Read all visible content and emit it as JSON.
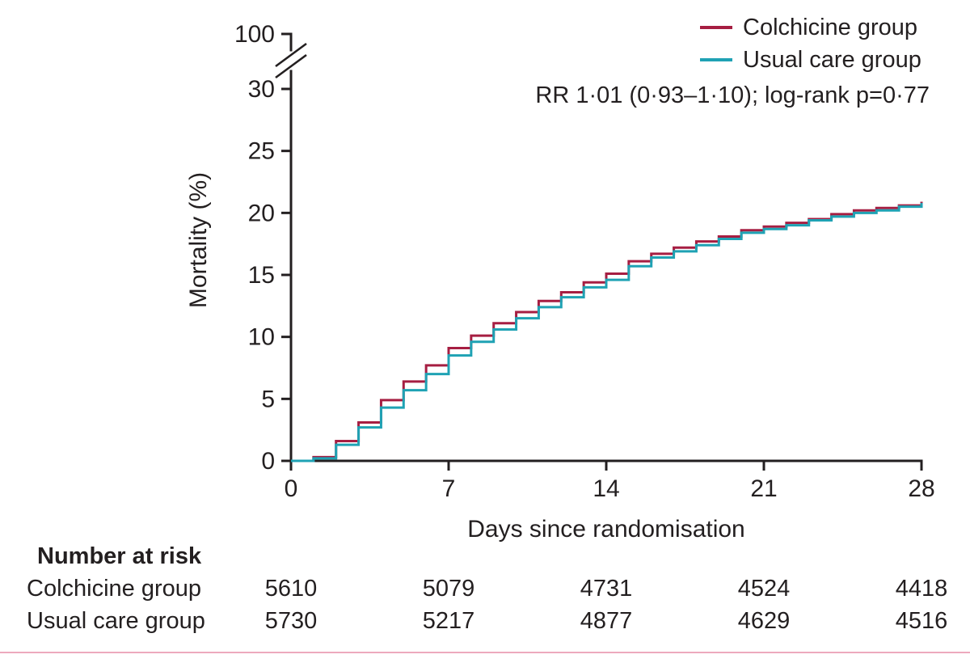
{
  "figure": {
    "background": "#ffffff",
    "text_color": "#231f20",
    "bottom_rule_color": "#eda9bd"
  },
  "chart_data": {
    "type": "line",
    "step": true,
    "title": "",
    "xlabel": "Days since randomisation",
    "ylabel": "Mortality (%)",
    "xlim": [
      0,
      28
    ],
    "ylim": [
      0,
      30
    ],
    "x_ticks": [
      0,
      7,
      14,
      21,
      28
    ],
    "y_ticks": [
      0,
      5,
      10,
      15,
      20,
      25,
      30
    ],
    "y_axis_break": {
      "upper_label": "100"
    },
    "grid": false,
    "legend_position": "top-right",
    "annotation": "RR 1·01 (0·93–1·10); log-rank p=0·77",
    "x": [
      0,
      1,
      2,
      3,
      4,
      5,
      6,
      7,
      8,
      9,
      10,
      11,
      12,
      13,
      14,
      15,
      16,
      17,
      18,
      19,
      20,
      21,
      22,
      23,
      24,
      25,
      26,
      27,
      28
    ],
    "series": [
      {
        "name": "Colchicine group",
        "color": "#a61e42",
        "values": [
          0,
          0.3,
          1.6,
          3.1,
          4.9,
          6.4,
          7.7,
          9.1,
          10.1,
          11.1,
          12.0,
          12.9,
          13.6,
          14.4,
          15.1,
          16.1,
          16.7,
          17.2,
          17.7,
          18.1,
          18.6,
          18.9,
          19.2,
          19.5,
          19.9,
          20.2,
          20.4,
          20.6,
          20.9
        ]
      },
      {
        "name": "Usual care group",
        "color": "#1fa2b4",
        "values": [
          0,
          0.2,
          1.3,
          2.7,
          4.3,
          5.7,
          7.0,
          8.5,
          9.6,
          10.6,
          11.5,
          12.4,
          13.2,
          14.0,
          14.6,
          15.7,
          16.4,
          16.9,
          17.4,
          17.9,
          18.4,
          18.7,
          19.0,
          19.4,
          19.7,
          20.0,
          20.2,
          20.5,
          20.8
        ]
      }
    ]
  },
  "risk_table": {
    "title": "Number at risk",
    "rows": [
      {
        "label": "Colchicine group",
        "values": [
          "5610",
          "5079",
          "4731",
          "4524",
          "4418"
        ]
      },
      {
        "label": "Usual care group",
        "values": [
          "5730",
          "5217",
          "4877",
          "4629",
          "4516"
        ]
      }
    ]
  }
}
